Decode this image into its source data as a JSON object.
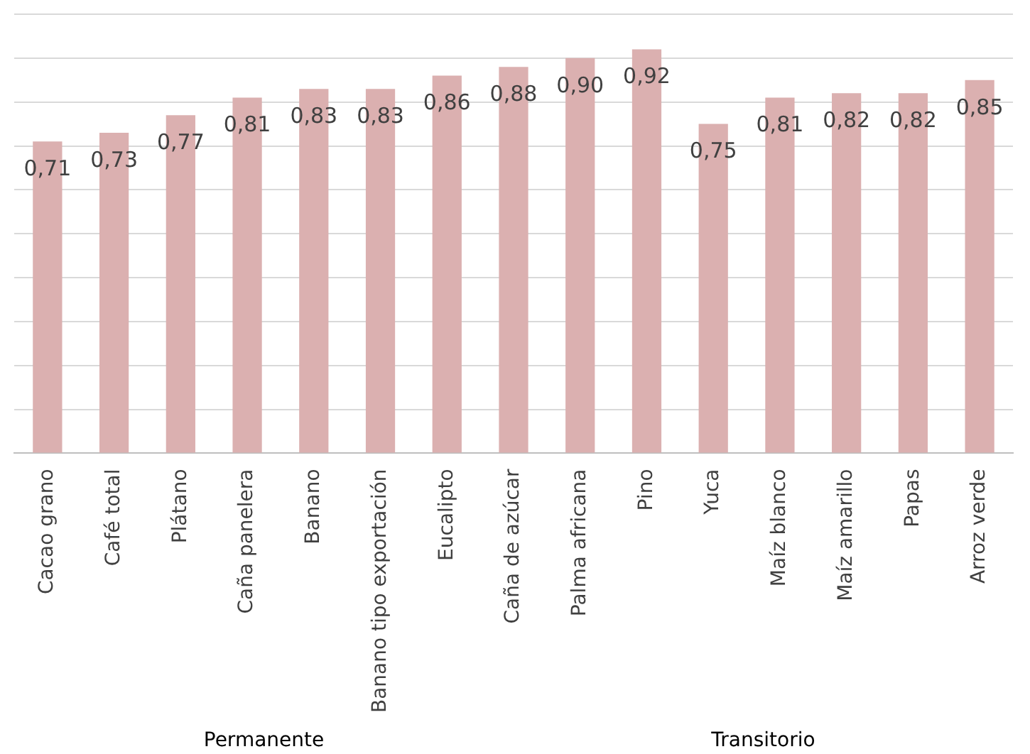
{
  "chart_data": {
    "type": "bar",
    "categories": [
      "Cacao grano",
      "Café total",
      "Plátano",
      "Caña panelera",
      "Banano",
      "Banano tipo exportación",
      "Eucalipto",
      "Caña de azúcar",
      "Palma africana",
      "Pino",
      "Yuca",
      "Maíz blanco",
      "Maíz amarillo",
      "Papas",
      "Arroz verde"
    ],
    "values": [
      0.71,
      0.73,
      0.77,
      0.81,
      0.83,
      0.83,
      0.86,
      0.88,
      0.9,
      0.92,
      0.75,
      0.81,
      0.82,
      0.82,
      0.85
    ],
    "value_labels": [
      "0,71",
      "0,73",
      "0,77",
      "0,81",
      "0,83",
      "0,83",
      "0,86",
      "0,88",
      "0,90",
      "0,92",
      "0,75",
      "0,81",
      "0,82",
      "0,82",
      "0,85"
    ],
    "color": "#dbb0b0",
    "ylim": [
      0,
      1
    ],
    "yticks": [
      {
        "value": 0,
        "label": null
      },
      {
        "value": 0.1,
        "label": null
      },
      {
        "value": 0.2,
        "label": null
      },
      {
        "value": 0.3,
        "label": null
      },
      {
        "value": 0.4,
        "label": null
      },
      {
        "value": 0.5,
        "label": null
      },
      {
        "value": 0.6,
        "label": null
      },
      {
        "value": 0.7,
        "label": null
      },
      {
        "value": 0.8,
        "label": null
      },
      {
        "value": 0.9,
        "label": null
      },
      {
        "value": 1,
        "label": null
      }
    ],
    "tick_labels": "x",
    "grid": "y",
    "legend": false,
    "annotations": [
      "Permanente",
      "Transitorio"
    ]
  }
}
